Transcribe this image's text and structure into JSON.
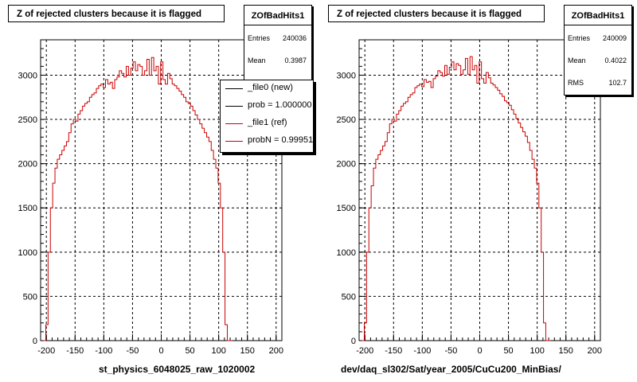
{
  "chart_data": [
    {
      "type": "histogram",
      "title": "Z of rejected clusters  because it is flagged",
      "xlabel": "st_physics_6048025_raw_1020002",
      "ylabel": "",
      "xlim": [
        -210,
        210
      ],
      "ylim": [
        0,
        3400
      ],
      "x_ticks": [
        -200,
        -150,
        -100,
        -50,
        0,
        50,
        100,
        150,
        200
      ],
      "y_ticks": [
        0,
        500,
        1000,
        1500,
        2000,
        2500,
        3000
      ],
      "grid": true,
      "stats": {
        "name": "ZOfBadHits1",
        "entries_label": "Entries",
        "entries": "240036",
        "mean_label": "Mean",
        "mean": "0.3987"
      },
      "legend": {
        "position": "top-right",
        "entries": [
          {
            "label": "_file0 (new)",
            "color": "#000000"
          },
          {
            "label": "prob = 1.000000",
            "color": "#000000"
          },
          {
            "label": "_file1 (ref)",
            "color": "#cc0000"
          },
          {
            "label": "probN = 0.999514",
            "color": "#cc0000"
          }
        ]
      },
      "series": [
        {
          "color": "#cc0000",
          "bin_edges_start": -205,
          "bin_width": 4,
          "values": [
            0,
            180,
            1000,
            1500,
            1780,
            1950,
            2050,
            2100,
            2150,
            2200,
            2250,
            2350,
            2450,
            2500,
            2480,
            2560,
            2600,
            2650,
            2680,
            2700,
            2750,
            2780,
            2800,
            2850,
            2880,
            2900,
            2860,
            2950,
            2900,
            2920,
            2850,
            2950,
            2980,
            3050,
            3020,
            2980,
            3100,
            3000,
            3080,
            3150,
            3050,
            3120,
            3100,
            3000,
            3050,
            3180,
            3000,
            3200,
            3050,
            3100,
            2900,
            3150,
            2950,
            2900,
            3020,
            2960,
            2900,
            2880,
            2850,
            2820,
            2780,
            2750,
            2700,
            2680,
            2650,
            2600,
            2550,
            2500,
            2450,
            2400,
            2350,
            2300,
            2250,
            2150,
            2050,
            1950,
            1780,
            1500,
            1000,
            180,
            0,
            0
          ]
        }
      ]
    },
    {
      "type": "histogram",
      "title": "Z of rejected clusters  because it is flagged",
      "xlabel": "dev/daq_sl302/Sat/year_2005/CuCu200_MinBias/",
      "ylabel": "",
      "xlim": [
        -210,
        210
      ],
      "ylim": [
        0,
        3400
      ],
      "x_ticks": [
        -200,
        -150,
        -100,
        -50,
        0,
        50,
        100,
        150,
        200
      ],
      "y_ticks": [
        0,
        500,
        1000,
        1500,
        2000,
        2500,
        3000
      ],
      "grid": true,
      "stats": {
        "name": "ZOfBadHits1",
        "entries_label": "Entries",
        "entries": "240009",
        "mean_label": "Mean",
        "mean": "0.4022",
        "rms_label": "RMS",
        "rms": "102.7"
      },
      "series": [
        {
          "color": "#cc0000",
          "bin_edges_start": -205,
          "bin_width": 4,
          "values": [
            0,
            200,
            1000,
            1500,
            1750,
            1950,
            2050,
            2100,
            2150,
            2200,
            2250,
            2350,
            2450,
            2500,
            2480,
            2560,
            2600,
            2650,
            2680,
            2700,
            2750,
            2780,
            2800,
            2860,
            2880,
            2900,
            2870,
            2950,
            2920,
            2930,
            2860,
            2960,
            2990,
            3050,
            3030,
            2990,
            3110,
            3010,
            3090,
            3150,
            3060,
            3130,
            3110,
            3010,
            3060,
            3190,
            3010,
            3210,
            3060,
            3110,
            2910,
            3150,
            2960,
            2910,
            3030,
            2970,
            2910,
            2890,
            2860,
            2830,
            2790,
            2760,
            2710,
            2690,
            2660,
            2610,
            2560,
            2510,
            2460,
            2410,
            2360,
            2310,
            2240,
            2150,
            2050,
            1950,
            1780,
            1500,
            1000,
            200,
            0,
            0
          ]
        }
      ]
    }
  ]
}
